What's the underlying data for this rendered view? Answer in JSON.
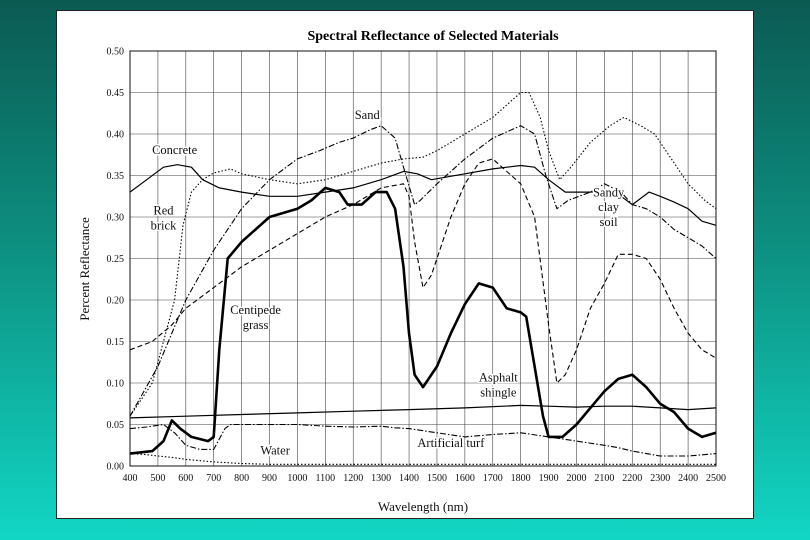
{
  "chart_data": {
    "type": "line",
    "title": "Spectral Reflectance of Selected Materials",
    "xlabel": "Wavelength (nm)",
    "ylabel": "Percent Reflectance",
    "xlim": [
      400,
      2500
    ],
    "ylim": [
      0,
      0.5
    ],
    "grid": true,
    "x_ticks": [
      "400",
      "500",
      "600",
      "700",
      "800",
      "900",
      "1000",
      "1100",
      "1200",
      "1300",
      "1400",
      "1500",
      "1600",
      "1700",
      "1800",
      "1900",
      "2000",
      "2100",
      "2200",
      "2300",
      "2400",
      "2500"
    ],
    "y_ticks": [
      "0.00",
      "0.05",
      "0.10",
      "0.15",
      "0.20",
      "0.25",
      "0.30",
      "0.35",
      "0.40",
      "0.45",
      "0.50"
    ],
    "series": [
      {
        "name": "Concrete",
        "label": "Concrete",
        "style": "solid-thin",
        "points": [
          [
            400,
            0.33
          ],
          [
            460,
            0.345
          ],
          [
            520,
            0.36
          ],
          [
            570,
            0.363
          ],
          [
            620,
            0.36
          ],
          [
            660,
            0.345
          ],
          [
            720,
            0.335
          ],
          [
            800,
            0.33
          ],
          [
            900,
            0.325
          ],
          [
            1000,
            0.325
          ],
          [
            1100,
            0.33
          ],
          [
            1200,
            0.335
          ],
          [
            1300,
            0.345
          ],
          [
            1380,
            0.355
          ],
          [
            1430,
            0.352
          ],
          [
            1480,
            0.345
          ],
          [
            1600,
            0.352
          ],
          [
            1700,
            0.358
          ],
          [
            1800,
            0.362
          ],
          [
            1850,
            0.36
          ],
          [
            1900,
            0.345
          ],
          [
            1960,
            0.33
          ],
          [
            2050,
            0.33
          ],
          [
            2100,
            0.332
          ],
          [
            2160,
            0.325
          ],
          [
            2200,
            0.315
          ],
          [
            2260,
            0.33
          ],
          [
            2300,
            0.325
          ],
          [
            2350,
            0.318
          ],
          [
            2400,
            0.31
          ],
          [
            2450,
            0.295
          ],
          [
            2500,
            0.29
          ]
        ]
      },
      {
        "name": "Red brick",
        "label": "Red brick",
        "style": "dotted",
        "points": [
          [
            400,
            0.06
          ],
          [
            480,
            0.1
          ],
          [
            520,
            0.15
          ],
          [
            560,
            0.2
          ],
          [
            590,
            0.29
          ],
          [
            620,
            0.33
          ],
          [
            660,
            0.345
          ],
          [
            700,
            0.353
          ],
          [
            760,
            0.358
          ],
          [
            800,
            0.352
          ],
          [
            900,
            0.345
          ],
          [
            1000,
            0.34
          ],
          [
            1100,
            0.345
          ],
          [
            1200,
            0.355
          ],
          [
            1300,
            0.365
          ],
          [
            1380,
            0.37
          ],
          [
            1450,
            0.372
          ],
          [
            1500,
            0.38
          ],
          [
            1600,
            0.4
          ],
          [
            1700,
            0.42
          ],
          [
            1800,
            0.45
          ],
          [
            1830,
            0.45
          ],
          [
            1870,
            0.42
          ],
          [
            1900,
            0.38
          ],
          [
            1940,
            0.345
          ],
          [
            1980,
            0.36
          ],
          [
            2050,
            0.39
          ],
          [
            2120,
            0.41
          ],
          [
            2170,
            0.42
          ],
          [
            2230,
            0.41
          ],
          [
            2280,
            0.4
          ],
          [
            2340,
            0.37
          ],
          [
            2400,
            0.34
          ],
          [
            2460,
            0.32
          ],
          [
            2500,
            0.31
          ]
        ]
      },
      {
        "name": "Sand",
        "label": "Sand",
        "style": "dash-dot",
        "points": [
          [
            400,
            0.06
          ],
          [
            500,
            0.12
          ],
          [
            600,
            0.2
          ],
          [
            700,
            0.26
          ],
          [
            800,
            0.31
          ],
          [
            900,
            0.345
          ],
          [
            1000,
            0.37
          ],
          [
            1080,
            0.38
          ],
          [
            1150,
            0.39
          ],
          [
            1200,
            0.395
          ],
          [
            1260,
            0.405
          ],
          [
            1300,
            0.41
          ],
          [
            1350,
            0.395
          ],
          [
            1380,
            0.36
          ],
          [
            1420,
            0.315
          ],
          [
            1440,
            0.32
          ],
          [
            1500,
            0.34
          ],
          [
            1600,
            0.37
          ],
          [
            1700,
            0.395
          ],
          [
            1800,
            0.41
          ],
          [
            1850,
            0.4
          ],
          [
            1890,
            0.35
          ],
          [
            1930,
            0.31
          ],
          [
            1970,
            0.32
          ],
          [
            2050,
            0.33
          ],
          [
            2100,
            0.34
          ],
          [
            2160,
            0.33
          ],
          [
            2200,
            0.315
          ],
          [
            2250,
            0.31
          ],
          [
            2300,
            0.3
          ],
          [
            2350,
            0.285
          ],
          [
            2400,
            0.275
          ],
          [
            2450,
            0.265
          ],
          [
            2500,
            0.25
          ]
        ]
      },
      {
        "name": "Sandy clay soil",
        "label": "Sandy clay soil",
        "style": "dashed",
        "points": [
          [
            400,
            0.14
          ],
          [
            480,
            0.15
          ],
          [
            550,
            0.17
          ],
          [
            600,
            0.19
          ],
          [
            700,
            0.215
          ],
          [
            800,
            0.24
          ],
          [
            900,
            0.26
          ],
          [
            1000,
            0.28
          ],
          [
            1100,
            0.3
          ],
          [
            1200,
            0.315
          ],
          [
            1300,
            0.335
          ],
          [
            1380,
            0.34
          ],
          [
            1400,
            0.325
          ],
          [
            1420,
            0.27
          ],
          [
            1450,
            0.215
          ],
          [
            1480,
            0.23
          ],
          [
            1550,
            0.3
          ],
          [
            1600,
            0.34
          ],
          [
            1650,
            0.365
          ],
          [
            1700,
            0.37
          ],
          [
            1750,
            0.355
          ],
          [
            1800,
            0.34
          ],
          [
            1850,
            0.3
          ],
          [
            1900,
            0.17
          ],
          [
            1930,
            0.1
          ],
          [
            1960,
            0.11
          ],
          [
            2000,
            0.14
          ],
          [
            2050,
            0.19
          ],
          [
            2100,
            0.22
          ],
          [
            2150,
            0.255
          ],
          [
            2200,
            0.255
          ],
          [
            2250,
            0.25
          ],
          [
            2300,
            0.225
          ],
          [
            2350,
            0.19
          ],
          [
            2400,
            0.16
          ],
          [
            2450,
            0.14
          ],
          [
            2500,
            0.13
          ]
        ]
      },
      {
        "name": "Centipede grass",
        "label": "Centipede grass",
        "style": "solid-thick",
        "points": [
          [
            400,
            0.015
          ],
          [
            480,
            0.018
          ],
          [
            520,
            0.03
          ],
          [
            550,
            0.055
          ],
          [
            580,
            0.045
          ],
          [
            620,
            0.035
          ],
          [
            680,
            0.03
          ],
          [
            700,
            0.035
          ],
          [
            720,
            0.14
          ],
          [
            750,
            0.25
          ],
          [
            800,
            0.27
          ],
          [
            900,
            0.3
          ],
          [
            1000,
            0.31
          ],
          [
            1050,
            0.32
          ],
          [
            1100,
            0.335
          ],
          [
            1150,
            0.33
          ],
          [
            1180,
            0.315
          ],
          [
            1230,
            0.315
          ],
          [
            1280,
            0.33
          ],
          [
            1320,
            0.33
          ],
          [
            1350,
            0.31
          ],
          [
            1380,
            0.24
          ],
          [
            1400,
            0.16
          ],
          [
            1420,
            0.11
          ],
          [
            1450,
            0.095
          ],
          [
            1500,
            0.12
          ],
          [
            1550,
            0.16
          ],
          [
            1600,
            0.195
          ],
          [
            1650,
            0.22
          ],
          [
            1700,
            0.215
          ],
          [
            1750,
            0.19
          ],
          [
            1800,
            0.185
          ],
          [
            1820,
            0.18
          ],
          [
            1850,
            0.12
          ],
          [
            1880,
            0.06
          ],
          [
            1900,
            0.035
          ],
          [
            1950,
            0.035
          ],
          [
            2000,
            0.05
          ],
          [
            2050,
            0.07
          ],
          [
            2100,
            0.09
          ],
          [
            2150,
            0.105
          ],
          [
            2200,
            0.11
          ],
          [
            2250,
            0.095
          ],
          [
            2300,
            0.075
          ],
          [
            2350,
            0.065
          ],
          [
            2400,
            0.045
          ],
          [
            2450,
            0.035
          ],
          [
            2500,
            0.04
          ]
        ]
      },
      {
        "name": "Asphalt shingle",
        "label": "Asphalt shingle",
        "style": "solid-thin",
        "points": [
          [
            400,
            0.058
          ],
          [
            600,
            0.06
          ],
          [
            800,
            0.062
          ],
          [
            1000,
            0.064
          ],
          [
            1200,
            0.066
          ],
          [
            1400,
            0.068
          ],
          [
            1600,
            0.07
          ],
          [
            1800,
            0.073
          ],
          [
            1900,
            0.072
          ],
          [
            2000,
            0.071
          ],
          [
            2100,
            0.072
          ],
          [
            2200,
            0.072
          ],
          [
            2300,
            0.07
          ],
          [
            2400,
            0.068
          ],
          [
            2500,
            0.07
          ]
        ]
      },
      {
        "name": "Artificial turf",
        "label": "Artificial turf",
        "style": "dash-dot",
        "points": [
          [
            400,
            0.045
          ],
          [
            460,
            0.047
          ],
          [
            520,
            0.05
          ],
          [
            560,
            0.04
          ],
          [
            600,
            0.025
          ],
          [
            650,
            0.02
          ],
          [
            700,
            0.02
          ],
          [
            740,
            0.045
          ],
          [
            760,
            0.05
          ],
          [
            900,
            0.05
          ],
          [
            1000,
            0.05
          ],
          [
            1100,
            0.048
          ],
          [
            1200,
            0.047
          ],
          [
            1300,
            0.048
          ],
          [
            1350,
            0.046
          ],
          [
            1400,
            0.045
          ],
          [
            1500,
            0.04
          ],
          [
            1600,
            0.035
          ],
          [
            1700,
            0.038
          ],
          [
            1800,
            0.04
          ],
          [
            1900,
            0.035
          ],
          [
            2000,
            0.03
          ],
          [
            2100,
            0.025
          ],
          [
            2150,
            0.022
          ],
          [
            2200,
            0.018
          ],
          [
            2300,
            0.012
          ],
          [
            2400,
            0.012
          ],
          [
            2500,
            0.015
          ]
        ]
      },
      {
        "name": "Water",
        "label": "Water",
        "style": "dotted",
        "points": [
          [
            400,
            0.015
          ],
          [
            450,
            0.014
          ],
          [
            500,
            0.012
          ],
          [
            560,
            0.01
          ],
          [
            600,
            0.008
          ],
          [
            700,
            0.005
          ],
          [
            800,
            0.003
          ],
          [
            900,
            0.002
          ],
          [
            1000,
            0.002
          ],
          [
            1200,
            0.002
          ],
          [
            1400,
            0.002
          ],
          [
            1600,
            0.002
          ],
          [
            2000,
            0.002
          ],
          [
            2500,
            0.002
          ]
        ]
      }
    ]
  }
}
